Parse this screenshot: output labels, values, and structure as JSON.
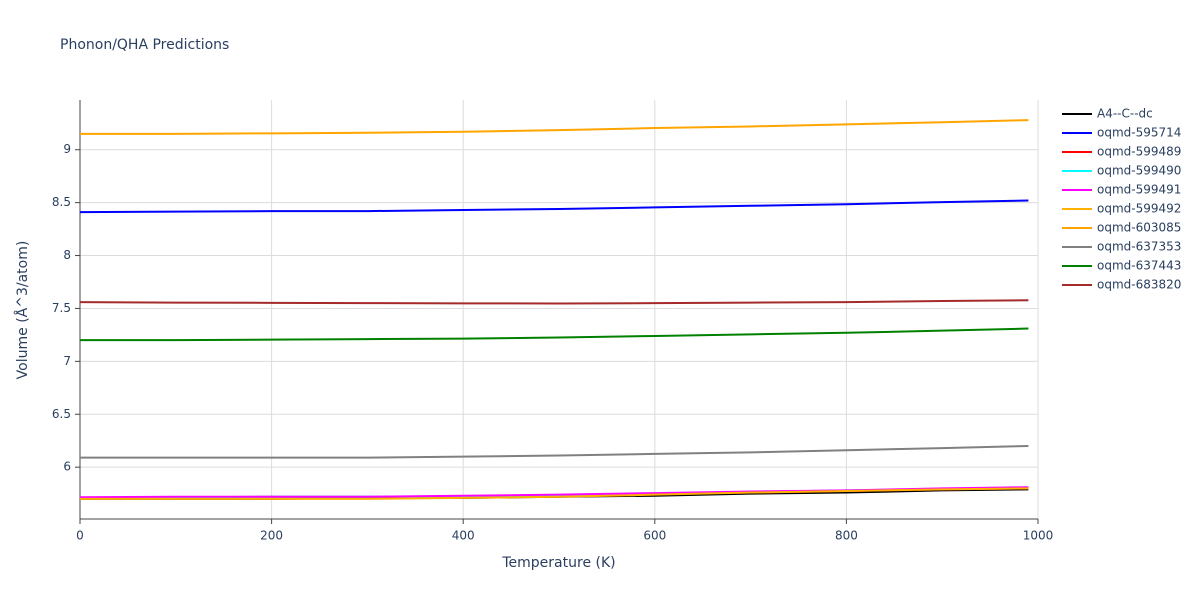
{
  "chart_data": {
    "type": "line",
    "title": "Phonon/QHA Predictions",
    "x_label": "Temperature (K)",
    "y_label": "Volume (Å^3/atom)",
    "x": [
      0,
      100,
      200,
      300,
      400,
      500,
      600,
      700,
      800,
      900,
      990
    ],
    "xlim": [
      0,
      1000
    ],
    "xticks": [
      0,
      200,
      400,
      600,
      800,
      1000
    ],
    "ylim": [
      5.51,
      9.47
    ],
    "yticks": [
      6,
      6.5,
      7,
      7.5,
      8,
      8.5,
      9
    ],
    "grid": true,
    "legend": "right",
    "series": [
      {
        "name": "A4--C--dc",
        "color": "#000000",
        "values": [
          5.7,
          5.7,
          5.7,
          5.71,
          5.71,
          5.72,
          5.73,
          5.75,
          5.76,
          5.78,
          5.79
        ]
      },
      {
        "name": "oqmd-595714",
        "color": "#0000ff",
        "values": [
          8.41,
          8.415,
          8.42,
          8.42,
          8.43,
          8.44,
          8.455,
          8.47,
          8.485,
          8.505,
          8.52
        ]
      },
      {
        "name": "oqmd-599489",
        "color": "#ff0000",
        "values": [
          5.71,
          5.715,
          5.72,
          5.72,
          5.725,
          5.735,
          5.75,
          5.76,
          5.775,
          5.79,
          5.8
        ]
      },
      {
        "name": "oqmd-599490",
        "color": "#00ffff",
        "values": [
          5.71,
          5.715,
          5.72,
          5.72,
          5.725,
          5.735,
          5.75,
          5.765,
          5.78,
          5.795,
          5.805
        ]
      },
      {
        "name": "oqmd-599491",
        "color": "#ff00ff",
        "values": [
          5.715,
          5.72,
          5.72,
          5.72,
          5.73,
          5.74,
          5.755,
          5.77,
          5.78,
          5.8,
          5.81
        ]
      },
      {
        "name": "oqmd-599492",
        "color": "#ffb000",
        "values": [
          5.7,
          5.7,
          5.7,
          5.7,
          5.71,
          5.72,
          5.74,
          5.76,
          5.775,
          5.79,
          5.8
        ]
      },
      {
        "name": "oqmd-603085",
        "color": "#ffa500",
        "values": [
          9.15,
          9.15,
          9.155,
          9.16,
          9.17,
          9.185,
          9.205,
          9.22,
          9.24,
          9.26,
          9.28
        ]
      },
      {
        "name": "oqmd-637353",
        "color": "#808080",
        "values": [
          6.09,
          6.09,
          6.09,
          6.09,
          6.1,
          6.11,
          6.125,
          6.14,
          6.16,
          6.18,
          6.2
        ]
      },
      {
        "name": "oqmd-637443",
        "color": "#008000",
        "values": [
          7.2,
          7.2,
          7.205,
          7.21,
          7.215,
          7.225,
          7.24,
          7.255,
          7.27,
          7.29,
          7.31
        ]
      },
      {
        "name": "oqmd-683820",
        "color": "#a52a2a",
        "values": [
          7.56,
          7.555,
          7.553,
          7.55,
          7.548,
          7.547,
          7.55,
          7.555,
          7.56,
          7.57,
          7.577
        ]
      }
    ]
  }
}
